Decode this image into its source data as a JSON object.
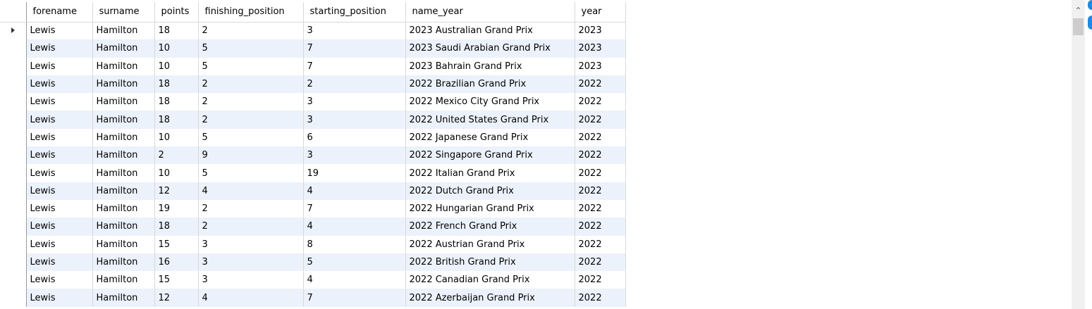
{
  "grid": {
    "columns": [
      "forename",
      "surname",
      "points",
      "finishing_position",
      "starting_position",
      "name_year",
      "year"
    ],
    "rows": [
      [
        "Lewis",
        "Hamilton",
        "18",
        "2",
        "3",
        "2023 Australian Grand Prix",
        "2023"
      ],
      [
        "Lewis",
        "Hamilton",
        "10",
        "5",
        "7",
        "2023 Saudi Arabian Grand Prix",
        "2023"
      ],
      [
        "Lewis",
        "Hamilton",
        "10",
        "5",
        "7",
        "2023 Bahrain Grand Prix",
        "2023"
      ],
      [
        "Lewis",
        "Hamilton",
        "18",
        "2",
        "2",
        "2022 Brazilian Grand Prix",
        "2022"
      ],
      [
        "Lewis",
        "Hamilton",
        "18",
        "2",
        "3",
        "2022 Mexico City Grand Prix",
        "2022"
      ],
      [
        "Lewis",
        "Hamilton",
        "18",
        "2",
        "3",
        "2022 United States Grand Prix",
        "2022"
      ],
      [
        "Lewis",
        "Hamilton",
        "10",
        "5",
        "6",
        "2022 Japanese Grand Prix",
        "2022"
      ],
      [
        "Lewis",
        "Hamilton",
        "2",
        "9",
        "3",
        "2022 Singapore Grand Prix",
        "2022"
      ],
      [
        "Lewis",
        "Hamilton",
        "10",
        "5",
        "19",
        "2022 Italian Grand Prix",
        "2022"
      ],
      [
        "Lewis",
        "Hamilton",
        "12",
        "4",
        "4",
        "2022 Dutch Grand Prix",
        "2022"
      ],
      [
        "Lewis",
        "Hamilton",
        "19",
        "2",
        "7",
        "2022 Hungarian Grand Prix",
        "2022"
      ],
      [
        "Lewis",
        "Hamilton",
        "18",
        "2",
        "4",
        "2022 French Grand Prix",
        "2022"
      ],
      [
        "Lewis",
        "Hamilton",
        "15",
        "3",
        "8",
        "2022 Austrian Grand Prix",
        "2022"
      ],
      [
        "Lewis",
        "Hamilton",
        "16",
        "3",
        "5",
        "2022 British Grand Prix",
        "2022"
      ],
      [
        "Lewis",
        "Hamilton",
        "15",
        "3",
        "4",
        "2022 Canadian Grand Prix",
        "2022"
      ],
      [
        "Lewis",
        "Hamilton",
        "12",
        "4",
        "7",
        "2022 Azerbaijan Grand Prix",
        "2022"
      ]
    ],
    "selected_row": 0
  },
  "scrollbar": {
    "up_arrow_icon": "chevron-up-icon"
  },
  "colors": {
    "alt_row": "#ebf2fb",
    "grid_line": "#d9d9d9",
    "accent": "#1e88e5"
  }
}
